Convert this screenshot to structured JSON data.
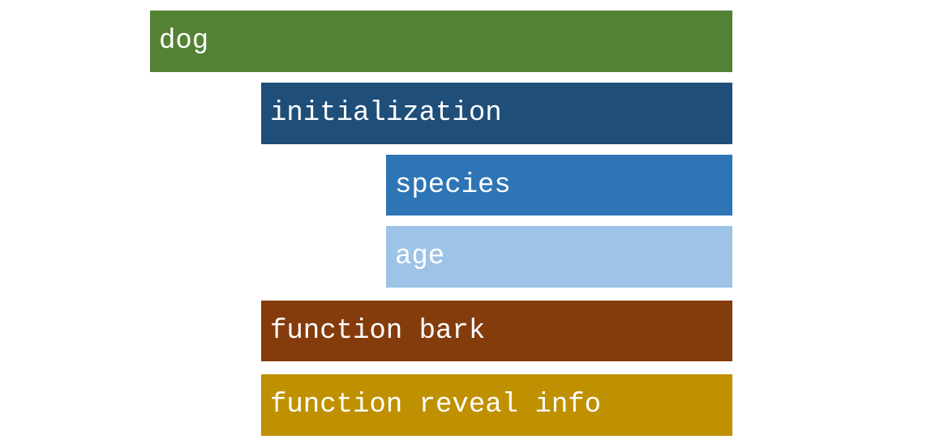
{
  "blocks": {
    "dog": {
      "label": "dog",
      "color": "#548235"
    },
    "initialization": {
      "label": "initialization",
      "color": "#1f4e79"
    },
    "species": {
      "label": "species",
      "color": "#2e75b6"
    },
    "age": {
      "label": "age",
      "color": "#9dc3e6"
    },
    "bark": {
      "label": "function bark",
      "color": "#843c0c"
    },
    "reveal_info": {
      "label": "function reveal info",
      "color": "#bf9000"
    }
  }
}
